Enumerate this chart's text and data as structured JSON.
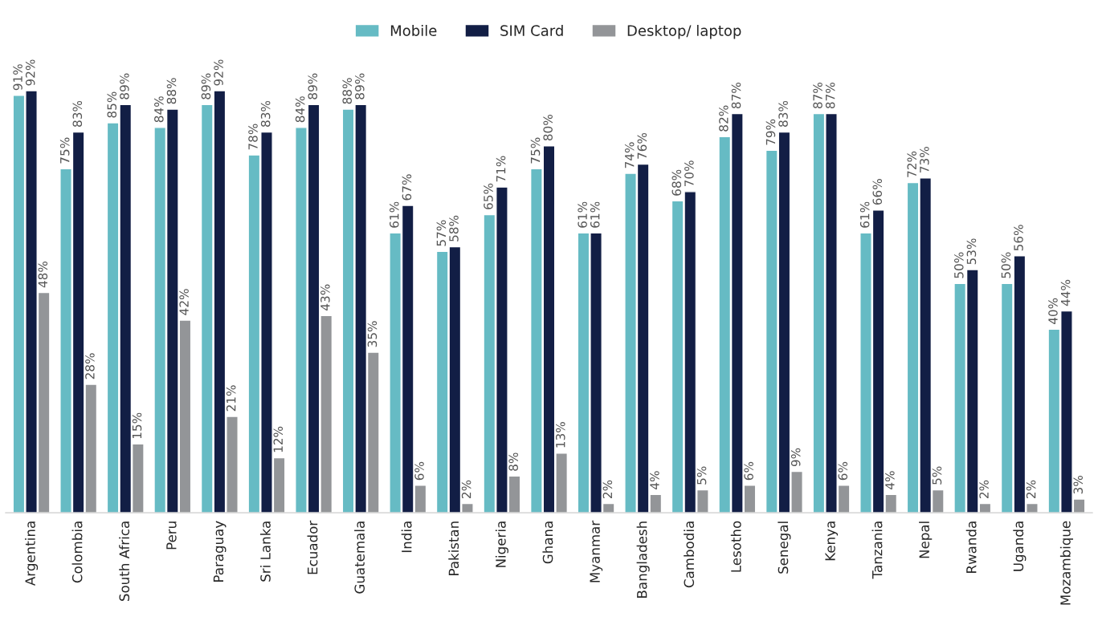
{
  "chart_data": {
    "type": "bar",
    "categories": [
      "Argentina",
      "Colombia",
      "South Africa",
      "Peru",
      "Paraguay",
      "Sri Lanka",
      "Ecuador",
      "Guatemala",
      "India",
      "Pakistan",
      "Nigeria",
      "Ghana",
      "Myanmar",
      "Bangladesh",
      "Cambodia",
      "Lesotho",
      "Senegal",
      "Kenya",
      "Tanzania",
      "Nepal",
      "Rwanda",
      "Uganda",
      "Mozambique"
    ],
    "series": [
      {
        "name": "Mobile",
        "color": "#66bbc4",
        "values": [
          91,
          75,
          85,
          84,
          89,
          78,
          84,
          88,
          61,
          57,
          65,
          75,
          61,
          74,
          68,
          82,
          79,
          87,
          61,
          72,
          50,
          50,
          40
        ],
        "value_labels": [
          "91%",
          "75%",
          "85%",
          "84%",
          "89%",
          "78%",
          "84%",
          "88%",
          "61%",
          "57%",
          "65%",
          "75%",
          "61%",
          "74%",
          "68%",
          "82%",
          "79%",
          "87%",
          "61%",
          "72%",
          "50%",
          "50%",
          "40%"
        ]
      },
      {
        "name": "SIM Card",
        "color": "#121e45",
        "values": [
          92,
          83,
          89,
          88,
          92,
          83,
          89,
          89,
          67,
          58,
          71,
          80,
          61,
          76,
          70,
          87,
          83,
          87,
          66,
          73,
          53,
          56,
          44
        ],
        "value_labels": [
          "92%",
          "83%",
          "89%",
          "88%",
          "92%",
          "83%",
          "89%",
          "89%",
          "67%",
          "58%",
          "71%",
          "80%",
          "61%",
          "76%",
          "70%",
          "87%",
          "83%",
          "87%",
          "66%",
          "73%",
          "53%",
          "56%",
          "44%"
        ]
      },
      {
        "name": "Desktop/ laptop",
        "color": "#939598",
        "values": [
          48,
          28,
          15,
          42,
          21,
          12,
          43,
          35,
          6,
          2,
          8,
          13,
          2,
          4,
          5,
          6,
          9,
          6,
          4,
          5,
          2,
          2,
          3
        ],
        "value_labels": [
          "48%",
          "28%",
          "15%",
          "42%",
          "21%",
          "12%",
          "43%",
          "35%",
          "6%",
          "2%",
          "8%",
          "13%",
          "2%",
          "4%",
          "5%",
          "6%",
          "9%",
          "6%",
          "4%",
          "5%",
          "2%",
          "2%",
          "3%"
        ]
      }
    ],
    "legend": "top",
    "grid": false
  }
}
